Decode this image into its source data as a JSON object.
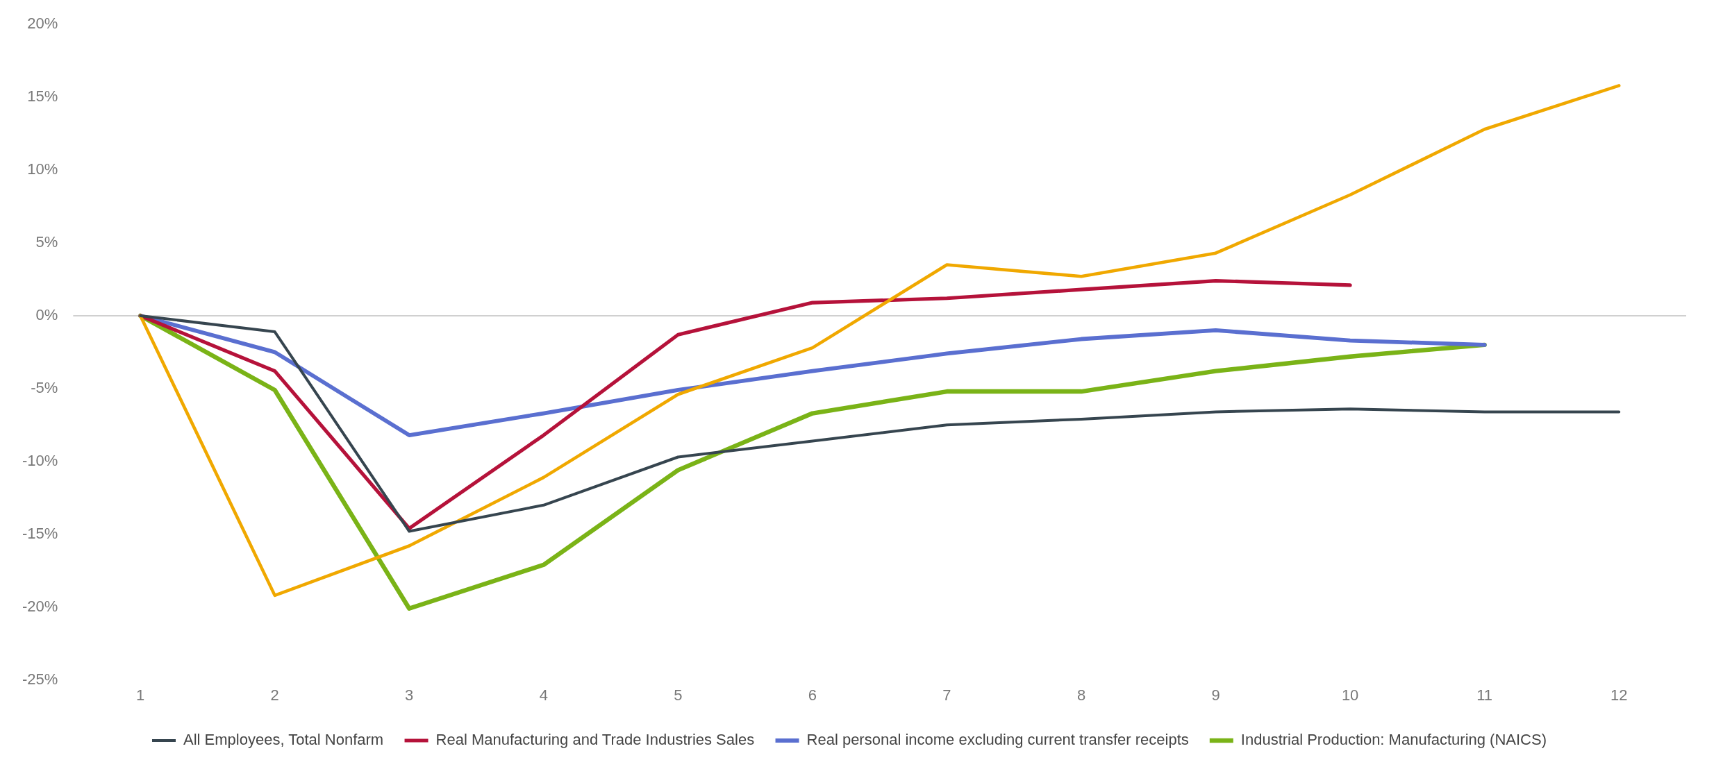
{
  "chart_data": {
    "type": "line",
    "categories": [
      "1",
      "2",
      "3",
      "4",
      "5",
      "6",
      "7",
      "8",
      "9",
      "10",
      "11",
      "12"
    ],
    "ylim": [
      -25,
      20
    ],
    "yticks": [
      {
        "value": -25,
        "label": "-25%"
      },
      {
        "value": -20,
        "label": "-20%"
      },
      {
        "value": -15,
        "label": "-15%"
      },
      {
        "value": -10,
        "label": "-10%"
      },
      {
        "value": -5,
        "label": "-5%"
      },
      {
        "value": 0,
        "label": "0%"
      },
      {
        "value": 5,
        "label": "5%"
      },
      {
        "value": 10,
        "label": "10%"
      },
      {
        "value": 15,
        "label": "15%"
      },
      {
        "value": 20,
        "label": "20%"
      }
    ],
    "grid": false,
    "ref_lines": [
      {
        "axis": "y",
        "value": 0,
        "color": "#d0d0d0"
      }
    ],
    "legend": "bottom",
    "marker": "none",
    "line_style": "solid",
    "series": [
      {
        "name": "All Employees, Total Nonfarm",
        "color": "#36454f",
        "values": [
          0,
          -1.1,
          -14.8,
          -13.0,
          -9.7,
          -8.6,
          -7.5,
          -7.1,
          -6.6,
          -6.4,
          -6.6,
          -6.6
        ]
      },
      {
        "color": "#f0a800",
        "values": [
          0,
          -19.2,
          -15.8,
          -11.1,
          -5.4,
          -2.2,
          3.5,
          2.7,
          4.3,
          8.3,
          12.8,
          15.8
        ]
      },
      {
        "name": "Real Manufacturing and Trade Industries Sales",
        "color": "#b5123a",
        "values": [
          0,
          -3.8,
          -14.6,
          -8.2,
          -1.3,
          0.9,
          1.2,
          1.8,
          2.4,
          2.1,
          null,
          null
        ]
      },
      {
        "name": "Real personal income excluding current transfer receipts",
        "color": "#5a6fd0",
        "values": [
          0,
          -2.5,
          -8.2,
          -6.7,
          -5.1,
          -3.8,
          -2.6,
          -1.6,
          -1.0,
          -1.7,
          -2.0,
          null
        ]
      },
      {
        "name": "Industrial Production: Manufacturing (NAICS)",
        "color": "#7ab317",
        "values": [
          0,
          -5.1,
          -20.1,
          -17.1,
          -10.6,
          -6.7,
          -5.2,
          -5.2,
          -3.8,
          -2.8,
          -2.0,
          null
        ]
      }
    ]
  }
}
